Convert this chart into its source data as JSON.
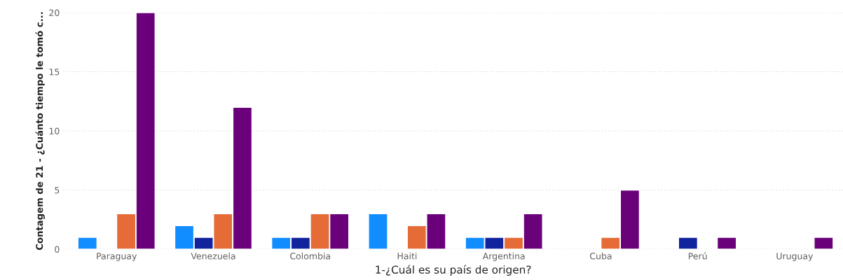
{
  "chart_data": {
    "type": "bar",
    "xlabel": "1-¿Cuál es su país de origen?",
    "ylabel": "Contagem de 21 - ¿Cuánto tiempo le tomó c...",
    "categories": [
      "Paraguay",
      "Venezuela",
      "Colombia",
      "Haiti",
      "Argentina",
      "Cuba",
      "Perú",
      "Uruguay"
    ],
    "series": [
      {
        "color": "#118dff",
        "values": [
          1,
          2,
          1,
          3,
          1,
          null,
          null,
          null
        ]
      },
      {
        "color": "#12239e",
        "values": [
          null,
          1,
          1,
          null,
          1,
          null,
          1,
          null
        ]
      },
      {
        "color": "#e66c37",
        "values": [
          3,
          3,
          3,
          2,
          1,
          1,
          null,
          null
        ]
      },
      {
        "color": "#6b007b",
        "values": [
          20,
          12,
          3,
          3,
          3,
          5,
          1,
          1
        ]
      }
    ],
    "ylim": [
      0,
      20
    ],
    "yticks": [
      0,
      5,
      10,
      15,
      20
    ],
    "grid": "y",
    "legend": false
  }
}
